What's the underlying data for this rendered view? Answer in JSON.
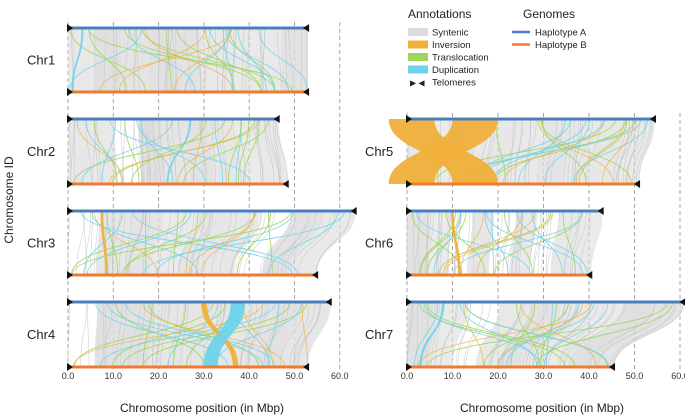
{
  "chart_data": {
    "type": "synteny",
    "ylabel": "Chromosome ID",
    "xlabel": "Chromosome position (in Mbp)",
    "xlim": [
      0,
      62
    ],
    "x_ticks": [
      "0.0",
      "10.0",
      "20.0",
      "30.0",
      "40.0",
      "50.0",
      "60.0"
    ],
    "x_tick_values": [
      0,
      10,
      20,
      30,
      40,
      50,
      60
    ],
    "legend_annotations": {
      "title": "Annotations",
      "items": [
        {
          "label": "Syntenic",
          "color": "#dcdcdc"
        },
        {
          "label": "Inversion",
          "color": "#f0b03a"
        },
        {
          "label": "Translocation",
          "color": "#9ed65a"
        },
        {
          "label": "Duplication",
          "color": "#6ed3ec"
        },
        {
          "label": "Telomeres",
          "color": "#111111",
          "glyph": "▶ ◀"
        }
      ]
    },
    "legend_genomes": {
      "title": "Genomes",
      "items": [
        {
          "label": "Haplotype A",
          "color": "#4a7fbf"
        },
        {
          "label": "Haplotype B",
          "color": "#f07b2e"
        }
      ]
    },
    "chromosomes": [
      {
        "id": "Chr1",
        "length_a": 53.0,
        "length_b": 53.0,
        "inversions": [],
        "duplications": [
          [
            3.2,
            1.0,
            0.4
          ]
        ]
      },
      {
        "id": "Chr2",
        "length_a": 46.5,
        "length_b": 48.5,
        "inversions": [],
        "duplications": [
          [
            27,
            22,
            0.4
          ]
        ]
      },
      {
        "id": "Chr3",
        "length_a": 63.5,
        "length_b": 55.0,
        "inversions": [
          [
            7.5,
            8.5,
            0.6
          ]
        ],
        "duplications": []
      },
      {
        "id": "Chr4",
        "length_a": 58.0,
        "length_b": 53.0,
        "inversions": [
          [
            30,
            37,
            1.2
          ]
        ],
        "duplications": [
          [
            37.5,
            31.5,
            3.2
          ]
        ]
      },
      {
        "id": "Chr5",
        "length_a": 54.5,
        "length_b": 51.0,
        "inversions": [
          [
            1,
            15,
            10.0
          ],
          [
            15,
            1,
            10.0
          ]
        ],
        "duplications": []
      },
      {
        "id": "Chr6",
        "length_a": 43.0,
        "length_b": 40.5,
        "inversions": [
          [
            10,
            11.5,
            0.6
          ]
        ],
        "duplications": []
      },
      {
        "id": "Chr7",
        "length_a": 61.0,
        "length_b": 45.5,
        "inversions": [],
        "duplications": [
          [
            8,
            3,
            0.5
          ]
        ]
      }
    ]
  }
}
